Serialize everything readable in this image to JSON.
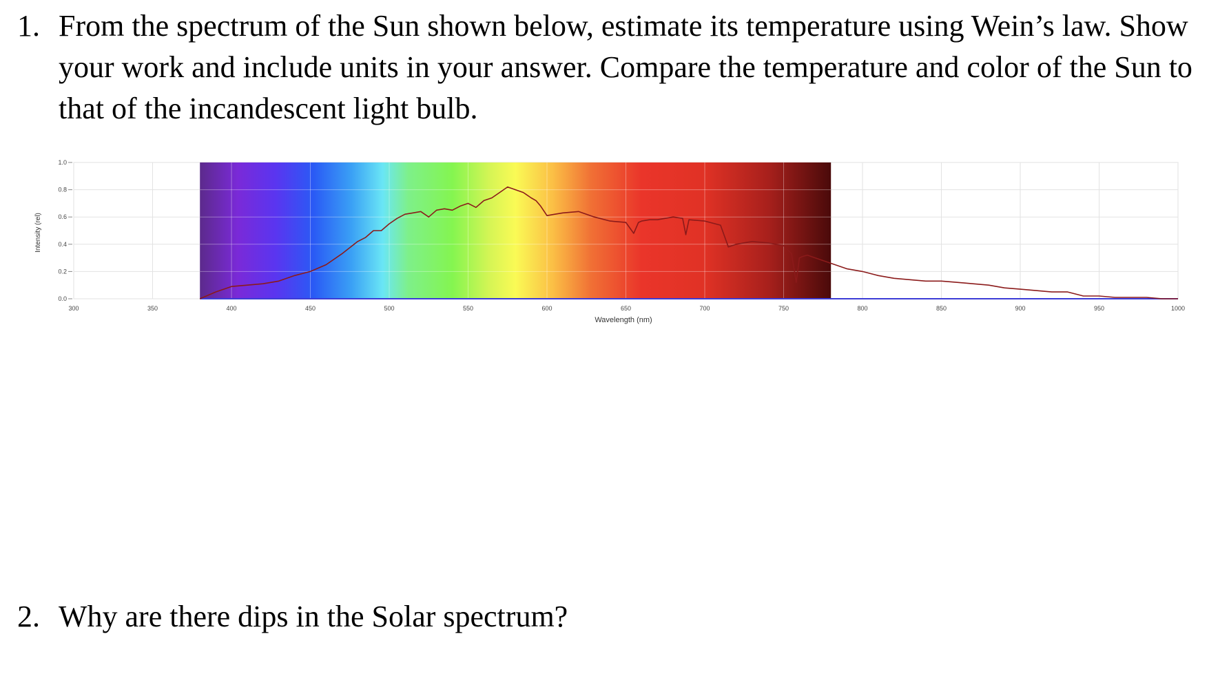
{
  "questions": [
    {
      "number": "1.",
      "text": "From the spectrum of the Sun shown below, estimate its temperature using Wein’s law. Show your work and include units in your answer. Compare the temperature and color of the Sun to that of the incandescent light bulb."
    },
    {
      "number": "2.",
      "text": "Why are there dips in the Solar spectrum?"
    }
  ],
  "chart_data": {
    "type": "line",
    "title": "",
    "xlabel": "Wavelength (nm)",
    "ylabel": "Intensity (rel)",
    "xlim": [
      300,
      1000
    ],
    "ylim": [
      0,
      1.0
    ],
    "x_ticks": [
      300,
      350,
      400,
      450,
      500,
      550,
      600,
      650,
      700,
      750,
      800,
      850,
      900,
      950,
      1000
    ],
    "y_ticks": [
      0.0,
      0.2,
      0.4,
      0.6,
      0.8,
      1.0
    ],
    "grid": true,
    "legend": "none",
    "background_band": {
      "x_start": 380,
      "x_end": 780,
      "description": "visible spectrum color gradient"
    },
    "line_color": "#8b1a1a",
    "series": [
      {
        "x": [
          380,
          390,
          400,
          410,
          420,
          430,
          440,
          450,
          460,
          470,
          480,
          485,
          490,
          495,
          500,
          505,
          510,
          515,
          520,
          525,
          530,
          535,
          540,
          545,
          550,
          555,
          560,
          565,
          570,
          575,
          580,
          585,
          590,
          593,
          596,
          600,
          605,
          610,
          620,
          630,
          640,
          650,
          655,
          658,
          660,
          665,
          670,
          680,
          686,
          688,
          690,
          700,
          710,
          715,
          720,
          730,
          740,
          750,
          755,
          758,
          760,
          762,
          765,
          770,
          780,
          790,
          800,
          810,
          820,
          830,
          840,
          850,
          860,
          870,
          880,
          890,
          900,
          910,
          920,
          930,
          940,
          950,
          960,
          970,
          980,
          990,
          1000
        ],
        "y": [
          0.0,
          0.05,
          0.09,
          0.1,
          0.11,
          0.13,
          0.17,
          0.2,
          0.25,
          0.33,
          0.42,
          0.45,
          0.5,
          0.5,
          0.55,
          0.59,
          0.62,
          0.63,
          0.64,
          0.6,
          0.65,
          0.66,
          0.65,
          0.68,
          0.7,
          0.67,
          0.72,
          0.74,
          0.78,
          0.82,
          0.8,
          0.78,
          0.74,
          0.72,
          0.68,
          0.61,
          0.62,
          0.63,
          0.64,
          0.6,
          0.57,
          0.56,
          0.48,
          0.56,
          0.57,
          0.58,
          0.58,
          0.6,
          0.59,
          0.47,
          0.58,
          0.57,
          0.54,
          0.38,
          0.4,
          0.42,
          0.41,
          0.39,
          0.33,
          0.12,
          0.3,
          0.31,
          0.32,
          0.3,
          0.26,
          0.22,
          0.2,
          0.17,
          0.15,
          0.14,
          0.13,
          0.13,
          0.12,
          0.11,
          0.1,
          0.08,
          0.07,
          0.06,
          0.05,
          0.05,
          0.02,
          0.02,
          0.01,
          0.01,
          0.01,
          0.0,
          0.0
        ]
      }
    ]
  }
}
